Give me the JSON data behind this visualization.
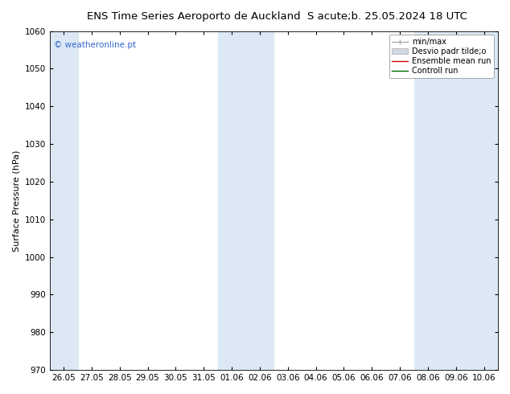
{
  "title_left": "ENS Time Series Aeroporto de Auckland",
  "title_right": "S acute;b. 25.05.2024 18 UTC",
  "ylabel": "Surface Pressure (hPa)",
  "ylim": [
    970,
    1060
  ],
  "yticks": [
    970,
    980,
    990,
    1000,
    1010,
    1020,
    1030,
    1040,
    1050,
    1060
  ],
  "xtick_labels": [
    "26.05",
    "27.05",
    "28.05",
    "29.05",
    "30.05",
    "31.05",
    "01.06",
    "02.06",
    "03.06",
    "04.06",
    "05.06",
    "06.06",
    "07.06",
    "08.06",
    "09.06",
    "10.06"
  ],
  "background_color": "#ffffff",
  "band_color": "#dce9f5",
  "legend_items": [
    "min/max",
    "Desvio padr tilde;o",
    "Ensemble mean run",
    "Controll run"
  ],
  "watermark": "© weatheronline.pt",
  "watermark_color": "#3366cc",
  "title_color": "#000000",
  "title_fontsize": 9.5,
  "tick_fontsize": 7.5,
  "ylabel_fontsize": 8,
  "shaded_indices": [
    0,
    6,
    7,
    13,
    14,
    15
  ],
  "n_xticks": 16
}
